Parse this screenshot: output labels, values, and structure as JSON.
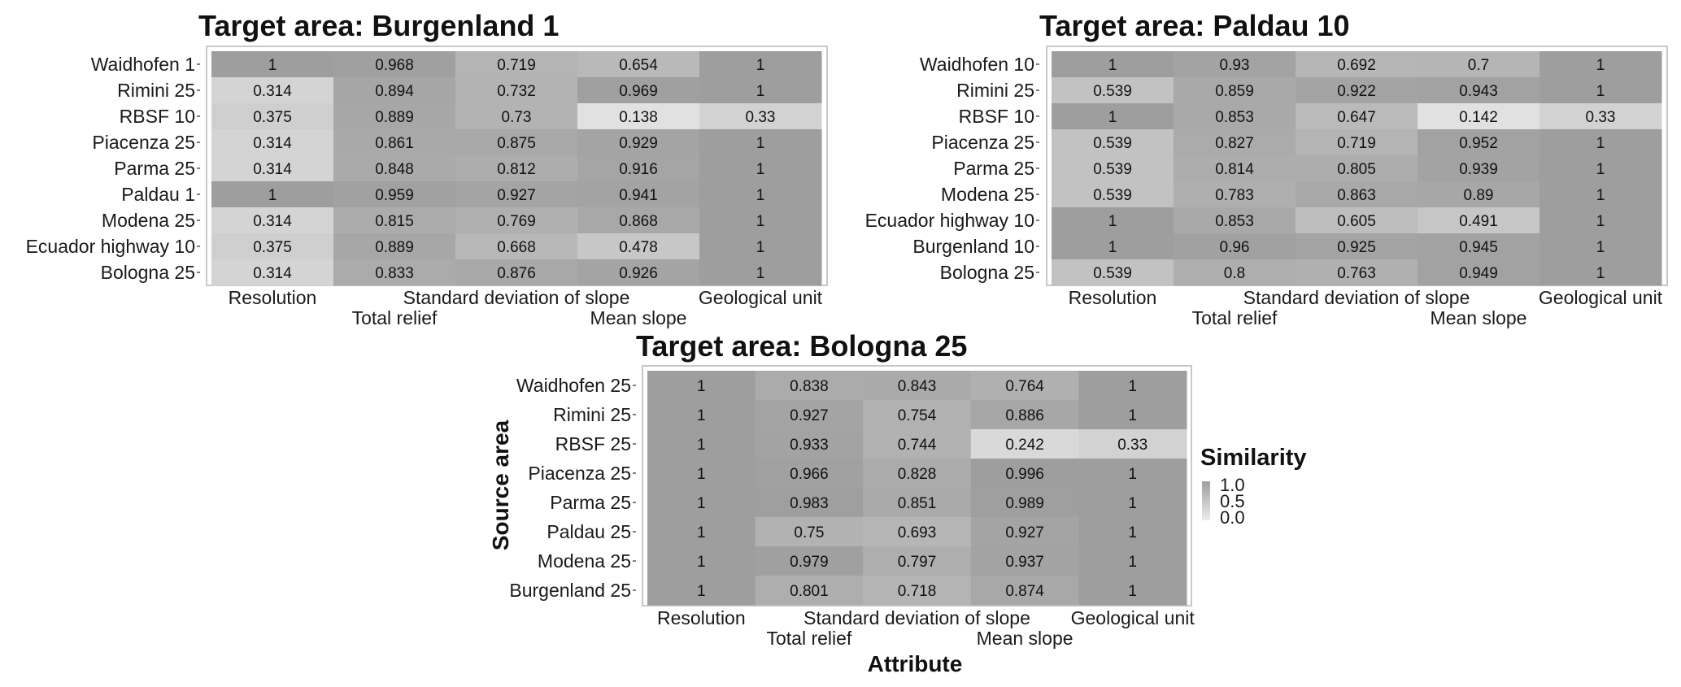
{
  "colors": {
    "low": "#ececec",
    "high": "#9e9e9e",
    "panel_border": "#c8c8c8",
    "text": "#1a1a1a"
  },
  "chart_data": [
    {
      "type": "heatmap",
      "title": "Target area: Burgenland 1",
      "rows": [
        "Waidhofen 1",
        "Rimini 25",
        "RBSF 10",
        "Piacenza 25",
        "Parma 25",
        "Paldau 1",
        "Modena 25",
        "Ecuador highway 10",
        "Bologna 25"
      ],
      "columns": [
        "Resolution",
        "Total relief",
        "Standard deviation of slope",
        "Mean slope",
        "Geological unit"
      ],
      "values": [
        [
          1,
          0.968,
          0.719,
          0.654,
          1
        ],
        [
          0.314,
          0.894,
          0.732,
          0.969,
          1
        ],
        [
          0.375,
          0.889,
          0.73,
          0.138,
          0.33
        ],
        [
          0.314,
          0.861,
          0.875,
          0.929,
          1
        ],
        [
          0.314,
          0.848,
          0.812,
          0.916,
          1
        ],
        [
          1,
          0.959,
          0.927,
          0.941,
          1
        ],
        [
          0.314,
          0.815,
          0.769,
          0.868,
          1
        ],
        [
          0.375,
          0.889,
          0.668,
          0.478,
          1
        ],
        [
          0.314,
          0.833,
          0.876,
          0.926,
          1
        ]
      ],
      "value_labels": [
        [
          "1",
          "0.968",
          "0.719",
          "0.654",
          "1"
        ],
        [
          "0.314",
          "0.894",
          "0.732",
          "0.969",
          "1"
        ],
        [
          "0.375",
          "0.889",
          "0.73",
          "0.138",
          "0.33"
        ],
        [
          "0.314",
          "0.861",
          "0.875",
          "0.929",
          "1"
        ],
        [
          "0.314",
          "0.848",
          "0.812",
          "0.916",
          "1"
        ],
        [
          "1",
          "0.959",
          "0.927",
          "0.941",
          "1"
        ],
        [
          "0.314",
          "0.815",
          "0.769",
          "0.868",
          "1"
        ],
        [
          "0.375",
          "0.889",
          "0.668",
          "0.478",
          "1"
        ],
        [
          "0.314",
          "0.833",
          "0.876",
          "0.926",
          "1"
        ]
      ],
      "xlabel": "",
      "ylabel": ""
    },
    {
      "type": "heatmap",
      "title": "Target area: Paldau 10",
      "rows": [
        "Waidhofen 10",
        "Rimini 25",
        "RBSF 10",
        "Piacenza 25",
        "Parma 25",
        "Modena 25",
        "Ecuador highway 10",
        "Burgenland 10",
        "Bologna 25"
      ],
      "columns": [
        "Resolution",
        "Total relief",
        "Standard deviation of slope",
        "Mean slope",
        "Geological unit"
      ],
      "values": [
        [
          1,
          0.93,
          0.692,
          0.7,
          1
        ],
        [
          0.539,
          0.859,
          0.922,
          0.943,
          1
        ],
        [
          1,
          0.853,
          0.647,
          0.142,
          0.33
        ],
        [
          0.539,
          0.827,
          0.719,
          0.952,
          1
        ],
        [
          0.539,
          0.814,
          0.805,
          0.939,
          1
        ],
        [
          0.539,
          0.783,
          0.863,
          0.89,
          1
        ],
        [
          1,
          0.853,
          0.605,
          0.491,
          1
        ],
        [
          1,
          0.96,
          0.925,
          0.945,
          1
        ],
        [
          0.539,
          0.8,
          0.763,
          0.949,
          1
        ]
      ],
      "value_labels": [
        [
          "1",
          "0.93",
          "0.692",
          "0.7",
          "1"
        ],
        [
          "0.539",
          "0.859",
          "0.922",
          "0.943",
          "1"
        ],
        [
          "1",
          "0.853",
          "0.647",
          "0.142",
          "0.33"
        ],
        [
          "0.539",
          "0.827",
          "0.719",
          "0.952",
          "1"
        ],
        [
          "0.539",
          "0.814",
          "0.805",
          "0.939",
          "1"
        ],
        [
          "0.539",
          "0.783",
          "0.863",
          "0.89",
          "1"
        ],
        [
          "1",
          "0.853",
          "0.605",
          "0.491",
          "1"
        ],
        [
          "1",
          "0.96",
          "0.925",
          "0.945",
          "1"
        ],
        [
          "0.539",
          "0.8",
          "0.763",
          "0.949",
          "1"
        ]
      ],
      "xlabel": "",
      "ylabel": ""
    },
    {
      "type": "heatmap",
      "title": "Target area: Bologna 25",
      "rows": [
        "Waidhofen 25",
        "Rimini 25",
        "RBSF 25",
        "Piacenza 25",
        "Parma 25",
        "Paldau 25",
        "Modena 25",
        "Burgenland 25"
      ],
      "columns": [
        "Resolution",
        "Total relief",
        "Standard deviation of slope",
        "Mean slope",
        "Geological unit"
      ],
      "values": [
        [
          1,
          0.838,
          0.843,
          0.764,
          1
        ],
        [
          1,
          0.927,
          0.754,
          0.886,
          1
        ],
        [
          1,
          0.933,
          0.744,
          0.242,
          0.33
        ],
        [
          1,
          0.966,
          0.828,
          0.996,
          1
        ],
        [
          1,
          0.983,
          0.851,
          0.989,
          1
        ],
        [
          1,
          0.75,
          0.693,
          0.927,
          1
        ],
        [
          1,
          0.979,
          0.797,
          0.937,
          1
        ],
        [
          1,
          0.801,
          0.718,
          0.874,
          1
        ]
      ],
      "value_labels": [
        [
          "1",
          "0.838",
          "0.843",
          "0.764",
          "1"
        ],
        [
          "1",
          "0.927",
          "0.754",
          "0.886",
          "1"
        ],
        [
          "1",
          "0.933",
          "0.744",
          "0.242",
          "0.33"
        ],
        [
          "1",
          "0.966",
          "0.828",
          "0.996",
          "1"
        ],
        [
          "1",
          "0.983",
          "0.851",
          "0.989",
          "1"
        ],
        [
          "1",
          "0.75",
          "0.693",
          "0.927",
          "1"
        ],
        [
          "1",
          "0.979",
          "0.797",
          "0.937",
          "1"
        ],
        [
          "1",
          "0.801",
          "0.718",
          "0.874",
          "1"
        ]
      ],
      "xlabel": "Attribute",
      "ylabel": "Source area"
    }
  ],
  "legend": {
    "title": "Similarity",
    "ticks": [
      "1.0",
      "0.5",
      "0.0"
    ],
    "range": [
      0,
      1
    ]
  }
}
